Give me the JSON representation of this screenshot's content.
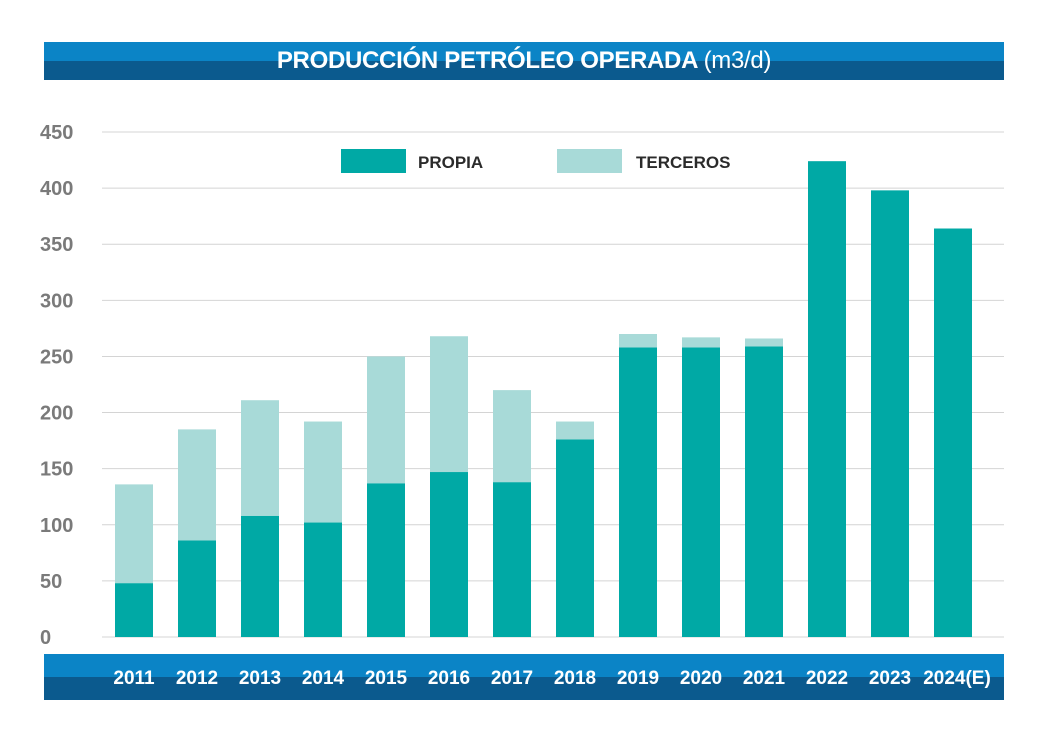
{
  "chart_data": {
    "type": "bar",
    "stacked": true,
    "title": "PRODUCCIÓN PETRÓLEO OPERADA",
    "title_unit": "(m3/d)",
    "categories": [
      "2011",
      "2012",
      "2013",
      "2014",
      "2015",
      "2016",
      "2017",
      "2018",
      "2019",
      "2020",
      "2021",
      "2022",
      "2023",
      "2024(E)"
    ],
    "series": [
      {
        "name": "PROPIA",
        "color": "#00a9a5",
        "values": [
          48,
          86,
          108,
          102,
          137,
          147,
          138,
          176,
          258,
          258,
          259,
          424,
          398,
          364
        ]
      },
      {
        "name": "TERCEROS",
        "color": "#a8dad8",
        "values": [
          88,
          99,
          103,
          90,
          113,
          121,
          82,
          16,
          12,
          9,
          7,
          0,
          0,
          0
        ]
      }
    ],
    "yticks": [
      "0",
      "50",
      "100",
      "150",
      "200",
      "250",
      "300",
      "350",
      "400",
      "450"
    ],
    "ylim": [
      0,
      450
    ],
    "grid": true,
    "legend_position": "top-center"
  }
}
